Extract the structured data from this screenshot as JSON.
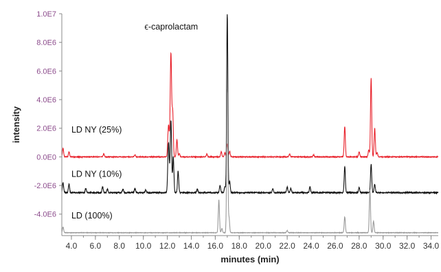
{
  "chart_data": {
    "type": "line",
    "title": "",
    "xlabel": "minutes (min)",
    "ylabel": "intensity",
    "xlim": [
      3.2,
      34.6
    ],
    "ylim": [
      -5500000.0,
      10000000.0
    ],
    "x_ticks": [
      4,
      6,
      8,
      10,
      12,
      14,
      16,
      18,
      20,
      22,
      24,
      26,
      28,
      30,
      32,
      34
    ],
    "x_tick_labels": [
      "4.0",
      "6.0",
      "8.0",
      "10.0",
      "12.0",
      "14.0",
      "16.0",
      "18.0",
      "20.0",
      "22.0",
      "24.0",
      "26.0",
      "28.0",
      "30.0",
      "32.0",
      "34.0"
    ],
    "y_ticks": [
      -4000000.0,
      -2000000.0,
      0,
      2000000.0,
      4000000.0,
      6000000.0,
      8000000.0,
      10000000.0
    ],
    "y_tick_labels": [
      "-4.0E6",
      "-2.0E6",
      "0.0E0",
      "2.0E6",
      "4.0E6",
      "6.0E6",
      "8.0E6",
      "1.0E7"
    ],
    "annotations": [
      {
        "text": "ϵ-caprolactam",
        "x": 12.3,
        "y": 8900000.0
      }
    ],
    "series": [
      {
        "name": "LD NY (25%)",
        "color": "#e8202a",
        "baseline": 0,
        "noise": 50000.0,
        "peaks": [
          [
            3.3,
            600000.0,
            0.05
          ],
          [
            3.8,
            350000.0,
            0.05
          ],
          [
            6.7,
            200000.0,
            0.05
          ],
          [
            9.3,
            150000.0,
            0.05
          ],
          [
            12.1,
            2200000.0,
            0.06
          ],
          [
            12.3,
            7200000.0,
            0.06
          ],
          [
            12.45,
            3000000.0,
            0.05
          ],
          [
            12.8,
            1200000.0,
            0.05
          ],
          [
            13.0,
            250000.0,
            0.05
          ],
          [
            15.3,
            200000.0,
            0.05
          ],
          [
            16.5,
            350000.0,
            0.05
          ],
          [
            16.8,
            300000.0,
            0.05
          ],
          [
            17.0,
            900000.0,
            0.05
          ],
          [
            17.2,
            400000.0,
            0.05
          ],
          [
            22.2,
            200000.0,
            0.05
          ],
          [
            24.2,
            150000.0,
            0.05
          ],
          [
            26.8,
            2100000.0,
            0.05
          ],
          [
            28.0,
            350000.0,
            0.05
          ],
          [
            28.8,
            500000.0,
            0.05
          ],
          [
            29.0,
            5500000.0,
            0.05
          ],
          [
            29.3,
            2000000.0,
            0.05
          ],
          [
            29.5,
            300000.0,
            0.05
          ]
        ]
      },
      {
        "name": "LD NY (10%)",
        "color": "#111111",
        "baseline": -2500000.0,
        "noise": 80000.0,
        "peaks": [
          [
            3.3,
            700000.0,
            0.05
          ],
          [
            3.8,
            600000.0,
            0.05
          ],
          [
            5.2,
            300000.0,
            0.05
          ],
          [
            6.6,
            400000.0,
            0.05
          ],
          [
            7.0,
            250000.0,
            0.05
          ],
          [
            8.3,
            250000.0,
            0.05
          ],
          [
            9.3,
            300000.0,
            0.05
          ],
          [
            10.2,
            200000.0,
            0.05
          ],
          [
            12.1,
            3500000.0,
            0.06
          ],
          [
            12.3,
            5000000.0,
            0.06
          ],
          [
            12.5,
            2500000.0,
            0.05
          ],
          [
            12.9,
            1500000.0,
            0.05
          ],
          [
            14.5,
            250000.0,
            0.05
          ],
          [
            16.4,
            500000.0,
            0.05
          ],
          [
            16.8,
            400000.0,
            0.05
          ],
          [
            17.0,
            12500000.0,
            0.05
          ],
          [
            17.2,
            800000.0,
            0.05
          ],
          [
            20.8,
            300000.0,
            0.05
          ],
          [
            22.0,
            400000.0,
            0.05
          ],
          [
            22.3,
            300000.0,
            0.05
          ],
          [
            23.9,
            400000.0,
            0.05
          ],
          [
            26.8,
            1800000.0,
            0.05
          ],
          [
            28.0,
            350000.0,
            0.05
          ],
          [
            29.0,
            2000000.0,
            0.05
          ],
          [
            29.3,
            600000.0,
            0.05
          ]
        ]
      },
      {
        "name": "LD (100%)",
        "color": "#999999",
        "baseline": -5300000.0,
        "noise": 30000.0,
        "peaks": [
          [
            3.3,
            400000.0,
            0.05
          ],
          [
            16.3,
            2300000.0,
            0.05
          ],
          [
            16.55,
            300000.0,
            0.05
          ],
          [
            17.0,
            10000000.0,
            0.05
          ],
          [
            17.15,
            1000000.0,
            0.05
          ],
          [
            22.0,
            150000.0,
            0.05
          ],
          [
            26.8,
            1100000.0,
            0.05
          ],
          [
            28.9,
            3000000.0,
            0.05
          ],
          [
            29.2,
            800000.0,
            0.05
          ]
        ]
      }
    ]
  }
}
